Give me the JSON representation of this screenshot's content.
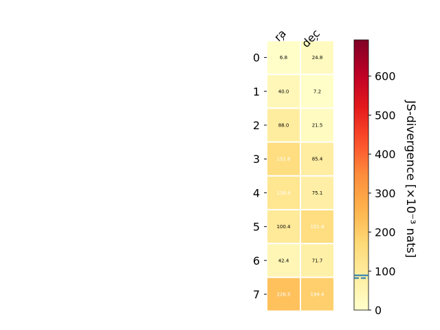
{
  "chart_data": {
    "type": "heatmap",
    "columns": [
      "ra",
      "dec"
    ],
    "rows": [
      "0",
      "1",
      "2",
      "3",
      "4",
      "5",
      "6",
      "7"
    ],
    "values": [
      [
        6.8,
        24.8
      ],
      [
        40.0,
        7.2
      ],
      [
        88.0,
        21.5
      ],
      [
        152.6,
        85.4
      ],
      [
        118.4,
        75.1
      ],
      [
        100.4,
        151.4
      ],
      [
        42.4,
        71.7
      ],
      [
        226.5,
        194.4
      ]
    ],
    "value_labels": [
      [
        "6.8",
        "24.8"
      ],
      [
        "40.0",
        "7.2"
      ],
      [
        "88.0",
        "21.5"
      ],
      [
        "152.6",
        "85.4"
      ],
      [
        "118.4",
        "75.1"
      ],
      [
        "100.4",
        "151.4"
      ],
      [
        "42.4",
        "71.7"
      ],
      [
        "226.5",
        "194.4"
      ]
    ],
    "colorbar": {
      "label": "JS-divergence [×10⁻³ nats]",
      "range": [
        0,
        693
      ],
      "ticks": [
        0,
        100,
        200,
        300,
        400,
        500,
        600
      ],
      "colormap": "YlOrRd",
      "reference_lines": [
        {
          "value": 89,
          "style": "solid",
          "color": "#1f77b4"
        },
        {
          "value": 82,
          "style": "dashed",
          "color": "#1f77b4"
        }
      ]
    },
    "grid": false
  }
}
